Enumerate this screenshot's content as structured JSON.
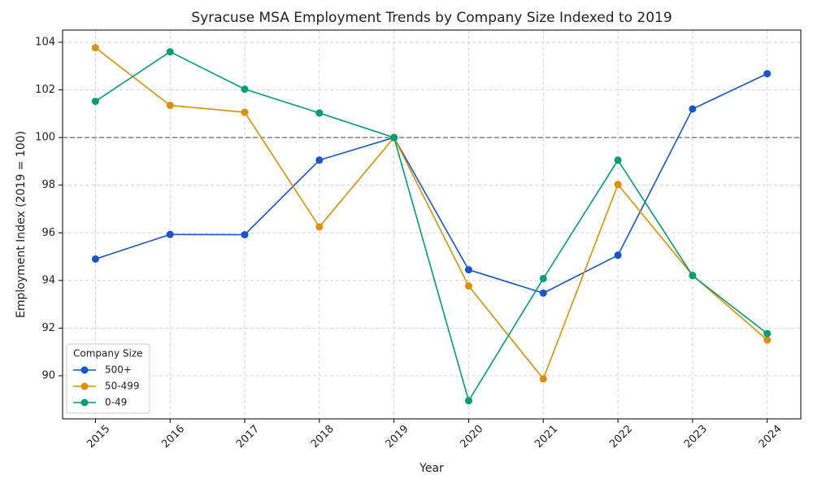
{
  "chart_data": {
    "type": "line",
    "title": "Syracuse MSA Employment Trends by Company Size Indexed to 2019",
    "x_label": "Year",
    "y_label": "Employment Index (2019 = 100)",
    "x": [
      2015,
      2016,
      2017,
      2018,
      2019,
      2020,
      2021,
      2022,
      2023,
      2024
    ],
    "series": [
      {
        "name": "500+",
        "color": "#1656c8",
        "values": [
          94.9,
          95.93,
          95.92,
          99.05,
          100,
          94.45,
          93.47,
          95.06,
          101.2,
          102.68
        ]
      },
      {
        "name": "50-499",
        "color": "#de8f05",
        "values": [
          103.77,
          101.35,
          101.06,
          96.25,
          100,
          93.77,
          89.87,
          98.03,
          94.22,
          91.5
        ]
      },
      {
        "name": "0-49",
        "color": "#029e73",
        "values": [
          101.52,
          103.6,
          102.03,
          101.03,
          100,
          88.95,
          94.08,
          99.05,
          94.2,
          91.77
        ]
      }
    ],
    "xlim": [
      2014.56,
      2024.45
    ],
    "xticks": [
      2015,
      2016,
      2017,
      2018,
      2019,
      2020,
      2021,
      2022,
      2023,
      2024
    ],
    "ylim": [
      88.19,
      104.51
    ],
    "yticks": [
      90,
      92,
      94,
      96,
      98,
      100,
      102,
      104
    ],
    "reference_line": {
      "value": 100,
      "color": "#808080"
    },
    "grid": true,
    "legend_title": "Company Size",
    "legend_position": "lower left"
  }
}
